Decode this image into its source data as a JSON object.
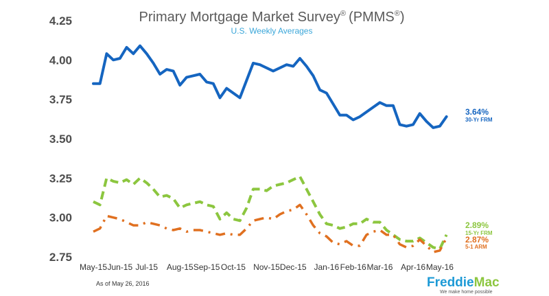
{
  "chart_data": {
    "type": "line",
    "title": "Primary Mortgage Market Survey",
    "title_suffix": "(PMMS",
    "title_end": ")",
    "registered_mark": "®",
    "subtitle": "U.S. Weekly Averages",
    "ylim": [
      2.75,
      4.25
    ],
    "yticks": [
      "4.25",
      "4.00",
      "3.75",
      "3.50",
      "3.25",
      "3.00",
      "2.75"
    ],
    "x_start": "2015-05-07",
    "x_end": "2016-05-26",
    "xticks": [
      {
        "label": "May-15",
        "date": "2015-05-07"
      },
      {
        "label": "Jun-15",
        "date": "2015-06-04"
      },
      {
        "label": "Jul-15",
        "date": "2015-07-02"
      },
      {
        "label": "Aug-15",
        "date": "2015-08-06"
      },
      {
        "label": "Sep-15",
        "date": "2015-09-03"
      },
      {
        "label": "Oct-15",
        "date": "2015-10-01"
      },
      {
        "label": "Nov-15",
        "date": "2015-11-05"
      },
      {
        "label": "Dec-15",
        "date": "2015-12-03"
      },
      {
        "label": "Jan-16",
        "date": "2016-01-07"
      },
      {
        "label": "Feb-16",
        "date": "2016-02-04"
      },
      {
        "label": "Mar-16",
        "date": "2016-03-03"
      },
      {
        "label": "Apr-16",
        "date": "2016-04-07"
      },
      {
        "label": "May-16",
        "date": "2016-05-05"
      }
    ],
    "series": [
      {
        "name": "30-Yr FRM",
        "color": "#1565c0",
        "style": "solid",
        "last_label": "3.64%",
        "points": [
          [
            "2015-05-07",
            3.85
          ],
          [
            "2015-05-14",
            3.85
          ],
          [
            "2015-05-21",
            4.04
          ],
          [
            "2015-05-28",
            4.0
          ],
          [
            "2015-06-04",
            4.01
          ],
          [
            "2015-06-11",
            4.08
          ],
          [
            "2015-06-18",
            4.04
          ],
          [
            "2015-06-25",
            4.09
          ],
          [
            "2015-07-02",
            4.04
          ],
          [
            "2015-07-09",
            3.98
          ],
          [
            "2015-07-16",
            3.91
          ],
          [
            "2015-07-23",
            3.94
          ],
          [
            "2015-07-30",
            3.93
          ],
          [
            "2015-08-06",
            3.84
          ],
          [
            "2015-08-13",
            3.89
          ],
          [
            "2015-08-20",
            3.9
          ],
          [
            "2015-08-27",
            3.91
          ],
          [
            "2015-09-03",
            3.86
          ],
          [
            "2015-09-10",
            3.85
          ],
          [
            "2015-09-17",
            3.76
          ],
          [
            "2015-09-24",
            3.82
          ],
          [
            "2015-10-01",
            3.79
          ],
          [
            "2015-10-08",
            3.76
          ],
          [
            "2015-10-15",
            3.87
          ],
          [
            "2015-10-22",
            3.98
          ],
          [
            "2015-10-29",
            3.97
          ],
          [
            "2015-11-05",
            3.95
          ],
          [
            "2015-11-12",
            3.93
          ],
          [
            "2015-11-19",
            3.95
          ],
          [
            "2015-11-26",
            3.97
          ],
          [
            "2015-12-03",
            3.96
          ],
          [
            "2015-12-10",
            4.01
          ],
          [
            "2015-12-17",
            3.96
          ],
          [
            "2015-12-24",
            3.9
          ],
          [
            "2015-12-31",
            3.81
          ],
          [
            "2016-01-07",
            3.79
          ],
          [
            "2016-01-14",
            3.72
          ],
          [
            "2016-01-21",
            3.65
          ],
          [
            "2016-01-28",
            3.65
          ],
          [
            "2016-02-04",
            3.62
          ],
          [
            "2016-02-11",
            3.64
          ],
          [
            "2016-02-18",
            3.67
          ],
          [
            "2016-02-25",
            3.7
          ],
          [
            "2016-03-03",
            3.73
          ],
          [
            "2016-03-10",
            3.71
          ],
          [
            "2016-03-17",
            3.71
          ],
          [
            "2016-03-24",
            3.59
          ],
          [
            "2016-03-31",
            3.58
          ],
          [
            "2016-04-07",
            3.59
          ],
          [
            "2016-04-14",
            3.66
          ],
          [
            "2016-04-21",
            3.61
          ],
          [
            "2016-04-28",
            3.57
          ],
          [
            "2016-05-05",
            3.58
          ],
          [
            "2016-05-12",
            3.64
          ]
        ]
      },
      {
        "name": "15-Yr FRM",
        "color": "#8cc63f",
        "style": "dashed",
        "last_label": "2.89%",
        "points": [
          [
            "2015-05-07",
            3.1
          ],
          [
            "2015-05-14",
            3.08
          ],
          [
            "2015-05-21",
            3.25
          ],
          [
            "2015-05-28",
            3.23
          ],
          [
            "2015-06-04",
            3.22
          ],
          [
            "2015-06-11",
            3.24
          ],
          [
            "2015-06-18",
            3.21
          ],
          [
            "2015-06-25",
            3.25
          ],
          [
            "2015-07-02",
            3.22
          ],
          [
            "2015-07-09",
            3.18
          ],
          [
            "2015-07-16",
            3.13
          ],
          [
            "2015-07-23",
            3.14
          ],
          [
            "2015-07-30",
            3.12
          ],
          [
            "2015-08-06",
            3.06
          ],
          [
            "2015-08-13",
            3.08
          ],
          [
            "2015-08-20",
            3.09
          ],
          [
            "2015-08-27",
            3.1
          ],
          [
            "2015-09-03",
            3.08
          ],
          [
            "2015-09-10",
            3.07
          ],
          [
            "2015-09-17",
            2.99
          ],
          [
            "2015-09-24",
            3.03
          ],
          [
            "2015-10-01",
            2.99
          ],
          [
            "2015-10-08",
            2.98
          ],
          [
            "2015-10-15",
            3.06
          ],
          [
            "2015-10-22",
            3.18
          ],
          [
            "2015-10-29",
            3.18
          ],
          [
            "2015-11-05",
            3.17
          ],
          [
            "2015-11-12",
            3.2
          ],
          [
            "2015-11-19",
            3.21
          ],
          [
            "2015-11-26",
            3.22
          ],
          [
            "2015-12-03",
            3.24
          ],
          [
            "2015-12-10",
            3.26
          ],
          [
            "2015-12-17",
            3.18
          ],
          [
            "2015-12-24",
            3.1
          ],
          [
            "2015-12-31",
            3.02
          ],
          [
            "2016-01-07",
            2.96
          ],
          [
            "2016-01-14",
            2.95
          ],
          [
            "2016-01-21",
            2.93
          ],
          [
            "2016-01-28",
            2.94
          ],
          [
            "2016-02-04",
            2.96
          ],
          [
            "2016-02-11",
            2.96
          ],
          [
            "2016-02-18",
            2.99
          ],
          [
            "2016-02-25",
            2.97
          ],
          [
            "2016-03-03",
            2.97
          ],
          [
            "2016-03-10",
            2.92
          ],
          [
            "2016-03-17",
            2.89
          ],
          [
            "2016-03-24",
            2.86
          ],
          [
            "2016-03-31",
            2.85
          ],
          [
            "2016-04-07",
            2.85
          ],
          [
            "2016-04-14",
            2.87
          ],
          [
            "2016-04-21",
            2.84
          ],
          [
            "2016-04-28",
            2.81
          ],
          [
            "2016-05-05",
            2.8
          ],
          [
            "2016-05-12",
            2.89
          ]
        ]
      },
      {
        "name": "5-1 ARM",
        "color": "#e07020",
        "style": "dashdot",
        "last_label": "2.87%",
        "points": [
          [
            "2015-05-07",
            2.91
          ],
          [
            "2015-05-14",
            2.93
          ],
          [
            "2015-05-21",
            3.01
          ],
          [
            "2015-05-28",
            3.0
          ],
          [
            "2015-06-04",
            2.99
          ],
          [
            "2015-06-11",
            2.97
          ],
          [
            "2015-06-18",
            2.95
          ],
          [
            "2015-06-25",
            2.95
          ],
          [
            "2015-07-02",
            2.97
          ],
          [
            "2015-07-09",
            2.96
          ],
          [
            "2015-07-16",
            2.95
          ],
          [
            "2015-07-23",
            2.93
          ],
          [
            "2015-07-30",
            2.92
          ],
          [
            "2015-08-06",
            2.93
          ],
          [
            "2015-08-13",
            2.91
          ],
          [
            "2015-08-20",
            2.92
          ],
          [
            "2015-08-27",
            2.92
          ],
          [
            "2015-09-03",
            2.91
          ],
          [
            "2015-09-10",
            2.9
          ],
          [
            "2015-09-17",
            2.89
          ],
          [
            "2015-09-24",
            2.9
          ],
          [
            "2015-10-01",
            2.89
          ],
          [
            "2015-10-08",
            2.89
          ],
          [
            "2015-10-15",
            2.93
          ],
          [
            "2015-10-22",
            2.98
          ],
          [
            "2015-10-29",
            2.99
          ],
          [
            "2015-11-05",
            3.0
          ],
          [
            "2015-11-12",
            2.99
          ],
          [
            "2015-11-19",
            3.02
          ],
          [
            "2015-11-26",
            3.04
          ],
          [
            "2015-12-03",
            3.05
          ],
          [
            "2015-12-10",
            3.08
          ],
          [
            "2015-12-17",
            3.02
          ],
          [
            "2015-12-24",
            2.95
          ],
          [
            "2015-12-31",
            2.9
          ],
          [
            "2016-01-07",
            2.88
          ],
          [
            "2016-01-14",
            2.84
          ],
          [
            "2016-01-21",
            2.83
          ],
          [
            "2016-01-28",
            2.85
          ],
          [
            "2016-02-04",
            2.82
          ],
          [
            "2016-02-11",
            2.82
          ],
          [
            "2016-02-18",
            2.89
          ],
          [
            "2016-02-25",
            2.91
          ],
          [
            "2016-03-03",
            2.92
          ],
          [
            "2016-03-10",
            2.89
          ],
          [
            "2016-03-17",
            2.89
          ],
          [
            "2016-03-24",
            2.83
          ],
          [
            "2016-03-31",
            2.81
          ],
          [
            "2016-04-07",
            2.82
          ],
          [
            "2016-04-14",
            2.86
          ],
          [
            "2016-04-21",
            2.82
          ],
          [
            "2016-04-28",
            2.78
          ],
          [
            "2016-05-05",
            2.79
          ],
          [
            "2016-05-12",
            2.87
          ]
        ]
      }
    ],
    "legend": "end-of-line labels",
    "grid": false
  },
  "footnote": "As of May 26, 2016",
  "brand": {
    "name_part1": "Freddie",
    "name_part2": "Mac",
    "tagline": "We make home possible",
    "color_part1": "#1d9ad6",
    "color_part2": "#8cc63f"
  }
}
